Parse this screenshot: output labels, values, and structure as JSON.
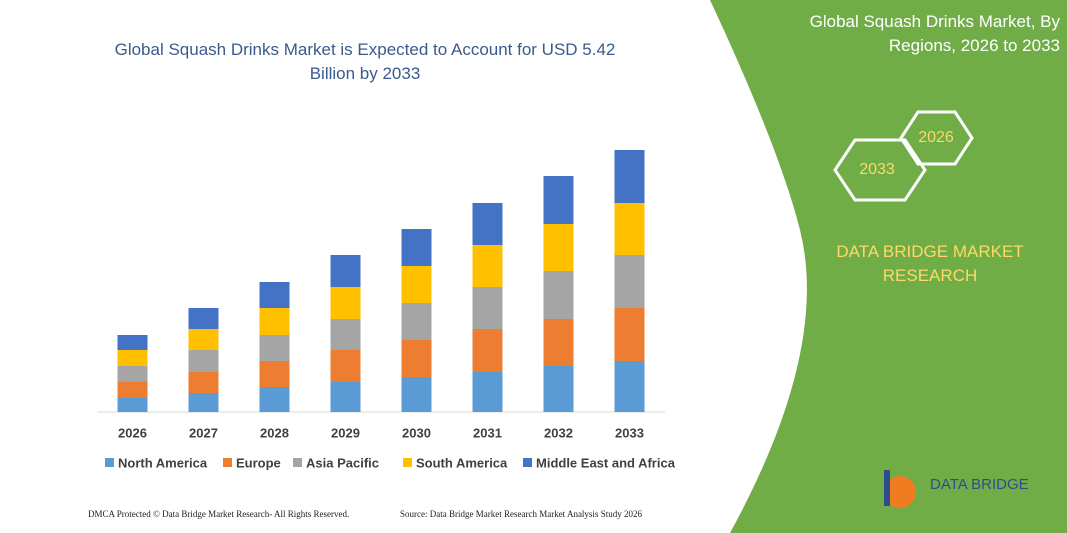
{
  "chart_data": {
    "type": "stacked-bar",
    "title": "Global Squash Drinks Market is Expected to Account for USD 5.42 Billion by 2033",
    "categories": [
      "2026",
      "2027",
      "2028",
      "2029",
      "2030",
      "2031",
      "2032",
      "2033"
    ],
    "series": [
      {
        "name": "North America",
        "color": "#5b9bd5",
        "values": [
          14,
          19,
          25,
          30,
          35,
          40,
          46,
          51
        ]
      },
      {
        "name": "Europe",
        "color": "#ed7d31",
        "values": [
          16,
          21,
          26,
          32,
          37,
          43,
          47,
          53
        ]
      },
      {
        "name": "Asia Pacific",
        "color": "#a5a5a5",
        "values": [
          16,
          22,
          26,
          31,
          37,
          42,
          48,
          53
        ]
      },
      {
        "name": "South America",
        "color": "#ffc000",
        "values": [
          16,
          21,
          27,
          32,
          37,
          42,
          47,
          52
        ]
      },
      {
        "name": "Middle East and Africa",
        "color": "#4472c4",
        "values": [
          15,
          21,
          26,
          32,
          37,
          42,
          48,
          53
        ]
      }
    ],
    "ylim": [
      0,
      280
    ],
    "legend": "bottom"
  },
  "panel": {
    "title": "Global Squash Drinks Market, By Regions, 2026 to 2033",
    "hex_left": "2033",
    "hex_right": "2026",
    "brand": "DATA BRIDGE MARKET RESEARCH"
  },
  "logo": "DATA BRIDGE",
  "footer": {
    "left": "DMCA Protected © Data Bridge Market Research-  All Rights Reserved.",
    "right": "Source: Data Bridge Market Research  Market Analysis Study 2026"
  }
}
